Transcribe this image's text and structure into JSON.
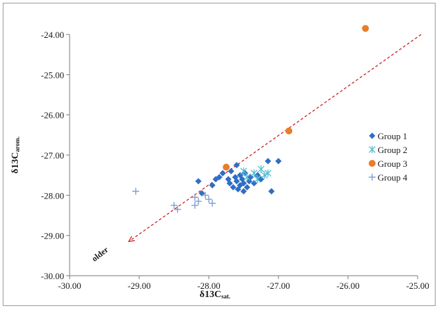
{
  "chart_data": {
    "type": "scatter",
    "xlim": [
      -30,
      -25
    ],
    "ylim": [
      -30,
      -23.6
    ],
    "x_ticks": [
      "-30.00",
      "-29.00",
      "-28.00",
      "-27.00",
      "-26.00",
      "-25.00"
    ],
    "y_ticks": [
      "-24.00",
      "-25.00",
      "-26.00",
      "-27.00",
      "-28.00",
      "-29.00",
      "-30.00"
    ],
    "xlabel": {
      "main": "δ13C",
      "sub": "sat."
    },
    "ylabel": {
      "main": "δ13C",
      "sub": "arom."
    },
    "annotation": "older",
    "grid": false,
    "legend_position": "right",
    "trend_arrow": {
      "from": [
        -24.95,
        -24.0
      ],
      "to": [
        -29.15,
        -29.15
      ],
      "color": "#cc2222",
      "style": "dashed"
    },
    "series": [
      {
        "name": "Group 1",
        "marker": "diamond",
        "color": "#2e6fc6",
        "points": [
          [
            -28.15,
            -27.65
          ],
          [
            -28.1,
            -27.95
          ],
          [
            -27.95,
            -27.75
          ],
          [
            -27.9,
            -27.6
          ],
          [
            -27.85,
            -27.55
          ],
          [
            -27.8,
            -27.45
          ],
          [
            -27.75,
            -27.3
          ],
          [
            -27.72,
            -27.6
          ],
          [
            -27.7,
            -27.7
          ],
          [
            -27.68,
            -27.4
          ],
          [
            -27.65,
            -27.8
          ],
          [
            -27.62,
            -27.55
          ],
          [
            -27.6,
            -27.25
          ],
          [
            -27.6,
            -27.65
          ],
          [
            -27.58,
            -27.85
          ],
          [
            -27.55,
            -27.5
          ],
          [
            -27.55,
            -27.75
          ],
          [
            -27.52,
            -27.6
          ],
          [
            -27.5,
            -27.9
          ],
          [
            -27.5,
            -27.7
          ],
          [
            -27.48,
            -27.45
          ],
          [
            -27.45,
            -27.8
          ],
          [
            -27.42,
            -27.65
          ],
          [
            -27.4,
            -27.55
          ],
          [
            -27.35,
            -27.7
          ],
          [
            -27.3,
            -27.5
          ],
          [
            -27.25,
            -27.6
          ],
          [
            -27.15,
            -27.15
          ],
          [
            -27.1,
            -27.9
          ],
          [
            -27.0,
            -27.15
          ]
        ]
      },
      {
        "name": "Group 2",
        "marker": "asterisk",
        "color": "#55bcd0",
        "points": [
          [
            -27.5,
            -27.4
          ],
          [
            -27.45,
            -27.55
          ],
          [
            -27.35,
            -27.45
          ],
          [
            -27.3,
            -27.6
          ],
          [
            -27.25,
            -27.35
          ],
          [
            -27.2,
            -27.5
          ],
          [
            -27.15,
            -27.45
          ]
        ]
      },
      {
        "name": "Group 3",
        "marker": "circle",
        "color": "#e87d2a",
        "points": [
          [
            -25.75,
            -23.85
          ],
          [
            -26.85,
            -26.4
          ],
          [
            -27.75,
            -27.3
          ]
        ]
      },
      {
        "name": "Group 4",
        "marker": "plus",
        "color": "#7fa0d0",
        "points": [
          [
            -29.05,
            -27.9
          ],
          [
            -28.5,
            -28.25
          ],
          [
            -28.45,
            -28.35
          ],
          [
            -28.2,
            -28.05
          ],
          [
            -28.2,
            -28.25
          ],
          [
            -28.15,
            -28.15
          ],
          [
            -28.05,
            -28.0
          ],
          [
            -28.0,
            -28.1
          ],
          [
            -27.95,
            -28.2
          ]
        ]
      }
    ]
  }
}
